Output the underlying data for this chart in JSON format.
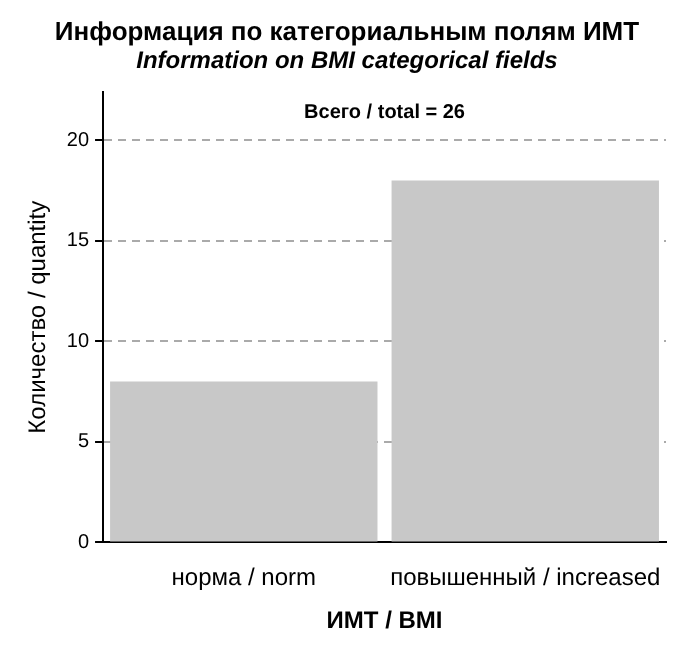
{
  "chart_data": {
    "type": "bar",
    "title": "Информация по категориальным полям ИМТ",
    "subtitle": "Information on BMI categorical fields",
    "categories": [
      "норма / norm",
      "повышенный / increased"
    ],
    "values": [
      8,
      18
    ],
    "color": "#c8c8c8",
    "xlabel": "ИМТ / BMI",
    "ylabel": "Количество / quantity",
    "ylim": [
      0,
      22.4
    ],
    "yticks": [
      0,
      5,
      10,
      15,
      20
    ],
    "grid": "y",
    "annotations": [
      "Всего / total = 26"
    ]
  }
}
